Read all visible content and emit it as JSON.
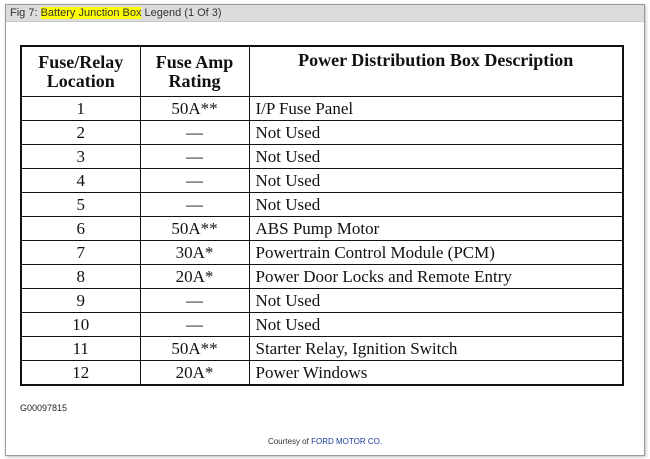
{
  "title": {
    "prefix": "Fig 7: ",
    "highlight": "Battery Junction Box",
    "suffix": " Legend (1 Of 3)"
  },
  "table": {
    "headers": [
      "Fuse/Relay Location",
      "Fuse Amp Rating",
      "Power Distribution Box Description"
    ],
    "rows": [
      [
        "1",
        "50A**",
        "I/P Fuse Panel"
      ],
      [
        "2",
        "—",
        "Not Used"
      ],
      [
        "3",
        "—",
        "Not Used"
      ],
      [
        "4",
        "—",
        "Not Used"
      ],
      [
        "5",
        "—",
        "Not Used"
      ],
      [
        "6",
        "50A**",
        "ABS Pump Motor"
      ],
      [
        "7",
        "30A*",
        "Powertrain Control Module (PCM)"
      ],
      [
        "8",
        "20A*",
        "Power Door Locks and Remote Entry"
      ],
      [
        "9",
        "—",
        "Not Used"
      ],
      [
        "10",
        "—",
        "Not Used"
      ],
      [
        "11",
        "50A**",
        "Starter Relay, Ignition Switch"
      ],
      [
        "12",
        "20A*",
        "Power Windows"
      ]
    ]
  },
  "figure_code": "G00097815",
  "courtesy": {
    "prefix": "Courtesy of ",
    "brand": "FORD MOTOR CO."
  }
}
